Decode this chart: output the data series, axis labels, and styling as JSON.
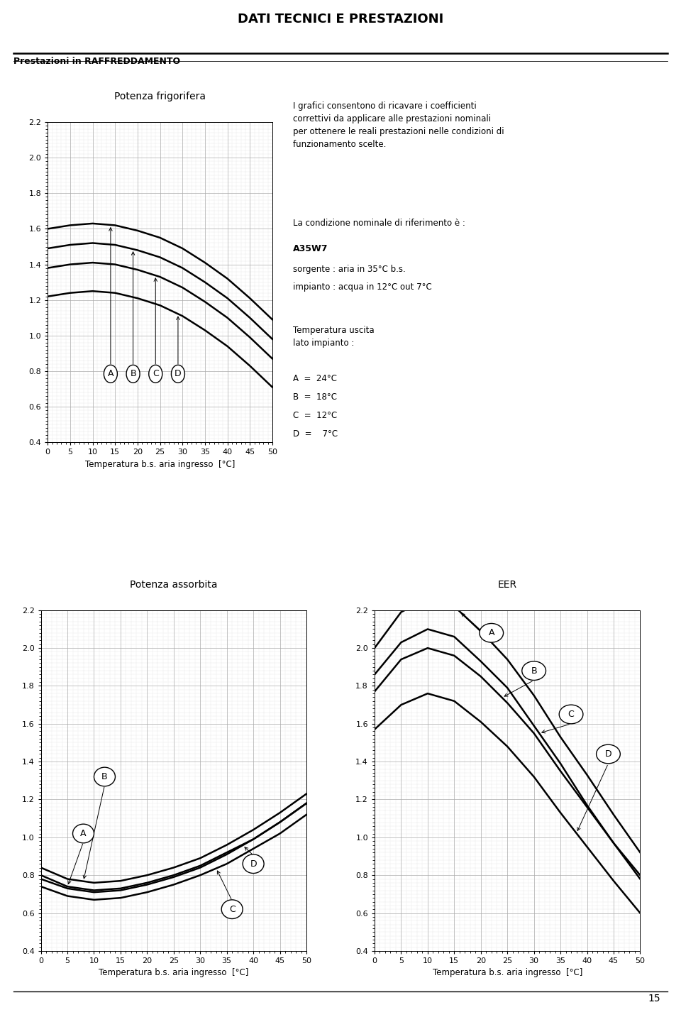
{
  "page_title": "DATI TECNICI E PRESTAZIONI",
  "section_title": "Prestazioni in RAFFREDDAMENTO",
  "header_bg": "#c8c8c8",
  "chart1_title": "Potenza frigorifera",
  "chart2_title": "Potenza assorbita",
  "chart3_title": "EER",
  "xlabel": "Temperatura b.s. aria ingresso  [°C]",
  "xlim": [
    0,
    50
  ],
  "ylim": [
    0.4,
    2.2
  ],
  "xticks": [
    0,
    5,
    10,
    15,
    20,
    25,
    30,
    35,
    40,
    45,
    50
  ],
  "yticks": [
    0.4,
    0.6,
    0.8,
    1.0,
    1.2,
    1.4,
    1.6,
    1.8,
    2.0,
    2.2
  ],
  "x": [
    0,
    5,
    10,
    15,
    20,
    25,
    30,
    35,
    40,
    45,
    50
  ],
  "pf_A": [
    1.6,
    1.62,
    1.63,
    1.62,
    1.59,
    1.55,
    1.49,
    1.41,
    1.32,
    1.21,
    1.09
  ],
  "pf_B": [
    1.49,
    1.51,
    1.52,
    1.51,
    1.48,
    1.44,
    1.38,
    1.3,
    1.21,
    1.1,
    0.98
  ],
  "pf_C": [
    1.38,
    1.4,
    1.41,
    1.4,
    1.37,
    1.33,
    1.27,
    1.19,
    1.1,
    0.99,
    0.87
  ],
  "pf_D": [
    1.22,
    1.24,
    1.25,
    1.24,
    1.21,
    1.17,
    1.11,
    1.03,
    0.94,
    0.83,
    0.71
  ],
  "pa_A": [
    0.8,
    0.74,
    0.72,
    0.73,
    0.76,
    0.8,
    0.85,
    0.92,
    0.99,
    1.08,
    1.18
  ],
  "pa_B": [
    0.84,
    0.78,
    0.76,
    0.77,
    0.8,
    0.84,
    0.89,
    0.96,
    1.04,
    1.13,
    1.23
  ],
  "pa_C": [
    0.74,
    0.69,
    0.67,
    0.68,
    0.71,
    0.75,
    0.8,
    0.86,
    0.94,
    1.02,
    1.12
  ],
  "pa_D": [
    0.78,
    0.73,
    0.71,
    0.72,
    0.75,
    0.79,
    0.84,
    0.91,
    0.99,
    1.08,
    1.18
  ],
  "eer_A": [
    2.0,
    2.19,
    2.26,
    2.22,
    2.09,
    1.94,
    1.75,
    1.53,
    1.33,
    1.12,
    0.92
  ],
  "eer_B": [
    1.77,
    1.94,
    2.0,
    1.96,
    1.85,
    1.71,
    1.55,
    1.35,
    1.16,
    0.97,
    0.8
  ],
  "eer_C": [
    1.86,
    2.03,
    2.1,
    2.06,
    1.93,
    1.79,
    1.59,
    1.39,
    1.17,
    0.97,
    0.78
  ],
  "eer_D": [
    1.57,
    1.7,
    1.76,
    1.72,
    1.61,
    1.48,
    1.32,
    1.13,
    0.95,
    0.77,
    0.6
  ],
  "info_text": "I grafici consentono di ricavare i coefficienti\ncorrettivi da applicare alle prestazioni nominali\nper ottenere le reali prestazioni nelle condizioni di\nfunzionamento scelte.",
  "cond_text": "La condizione nominale di riferimento è :",
  "cond_bold": "A35W7",
  "cond_line1": "sorgente : aria in 35°C b.s.",
  "cond_line2": "impianto : acqua in 12°C out 7°C",
  "temp_title": "Temperatura uscita\nlato impianto :",
  "temp_A": "A  =  24°C",
  "temp_B": "B  =  18°C",
  "temp_C": "C  =  12°C",
  "temp_D": "D  =    7°C",
  "page_num": "15"
}
